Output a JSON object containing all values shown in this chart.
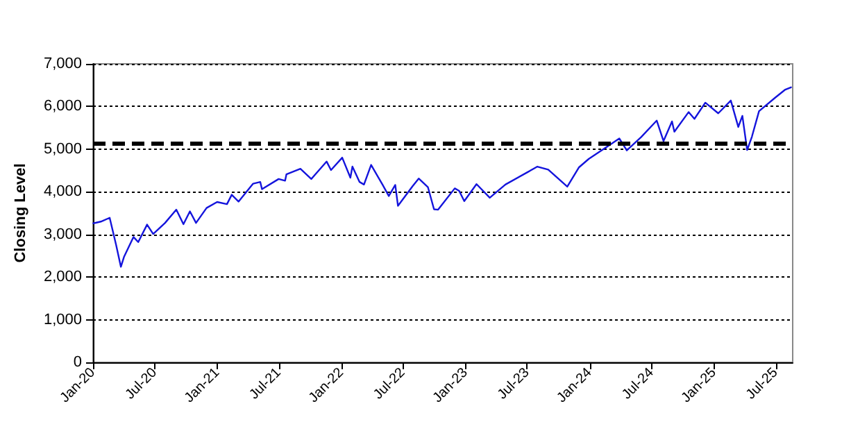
{
  "chart_data": {
    "type": "line",
    "ylabel": "Closing Level",
    "x": [
      "2020-01-02",
      "2020-01-24",
      "2020-02-19",
      "2020-03-09",
      "2020-03-23",
      "2020-04-01",
      "2020-04-29",
      "2020-05-13",
      "2020-06-08",
      "2020-06-26",
      "2020-07-31",
      "2020-09-02",
      "2020-09-23",
      "2020-10-12",
      "2020-10-30",
      "2020-11-30",
      "2020-12-31",
      "2021-01-29",
      "2021-02-12",
      "2021-03-04",
      "2021-04-16",
      "2021-05-07",
      "2021-05-12",
      "2021-06-30",
      "2021-07-19",
      "2021-07-23",
      "2021-09-02",
      "2021-10-04",
      "2021-11-18",
      "2021-12-01",
      "2022-01-03",
      "2022-01-27",
      "2022-02-02",
      "2022-02-23",
      "2022-03-08",
      "2022-03-29",
      "2022-05-02",
      "2022-05-20",
      "2022-06-08",
      "2022-06-16",
      "2022-07-29",
      "2022-08-16",
      "2022-09-12",
      "2022-09-30",
      "2022-10-12",
      "2022-11-30",
      "2022-12-13",
      "2022-12-28",
      "2023-02-02",
      "2023-03-13",
      "2023-04-28",
      "2023-06-30",
      "2023-07-31",
      "2023-09-01",
      "2023-10-27",
      "2023-11-30",
      "2023-12-29",
      "2024-02-29",
      "2024-03-28",
      "2024-04-19",
      "2024-05-31",
      "2024-07-16",
      "2024-08-05",
      "2024-08-30",
      "2024-09-06",
      "2024-10-18",
      "2024-11-04",
      "2024-12-06",
      "2025-01-13",
      "2025-02-19",
      "2025-03-13",
      "2025-03-25",
      "2025-04-08",
      "2025-04-22",
      "2025-05-13",
      "2025-06-30",
      "2025-07-28",
      "2025-08-15"
    ],
    "values": [
      3260,
      3300,
      3390,
      2750,
      2240,
      2470,
      2940,
      2820,
      3230,
      3010,
      3270,
      3580,
      3240,
      3540,
      3270,
      3620,
      3760,
      3710,
      3930,
      3770,
      4190,
      4230,
      4060,
      4300,
      4260,
      4410,
      4540,
      4300,
      4710,
      4510,
      4800,
      4330,
      4590,
      4230,
      4170,
      4630,
      4160,
      3900,
      4160,
      3670,
      4130,
      4310,
      4110,
      3590,
      3580,
      4080,
      4020,
      3780,
      4180,
      3860,
      4170,
      4450,
      4590,
      4520,
      4120,
      4570,
      4770,
      5100,
      5250,
      4970,
      5280,
      5670,
      5190,
      5650,
      5410,
      5870,
      5710,
      6090,
      5840,
      6140,
      5520,
      5780,
      4980,
      5290,
      5890,
      6210,
      6390,
      6450
    ],
    "color": "#1414dc",
    "xlim": [
      "2020-01-01",
      "2025-08-20"
    ],
    "xticks": [
      {
        "value": "2020-01-01",
        "label": "Jan-20"
      },
      {
        "value": "2020-07-01",
        "label": "Jul-20"
      },
      {
        "value": "2021-01-01",
        "label": "Jan-21"
      },
      {
        "value": "2021-07-01",
        "label": "Jul-21"
      },
      {
        "value": "2022-01-01",
        "label": "Jan-22"
      },
      {
        "value": "2022-07-01",
        "label": "Jul-22"
      },
      {
        "value": "2023-01-01",
        "label": "Jan-23"
      },
      {
        "value": "2023-07-01",
        "label": "Jul-23"
      },
      {
        "value": "2024-01-01",
        "label": "Jan-24"
      },
      {
        "value": "2024-07-01",
        "label": "Jul-24"
      },
      {
        "value": "2025-01-01",
        "label": "Jan-25"
      },
      {
        "value": "2025-07-01",
        "label": "Jul-25"
      }
    ],
    "ylim": [
      0,
      7000
    ],
    "yticks": [
      {
        "value": 0,
        "label": "0"
      },
      {
        "value": 1000,
        "label": "1,000"
      },
      {
        "value": 2000,
        "label": "2,000"
      },
      {
        "value": 3000,
        "label": "3,000"
      },
      {
        "value": 4000,
        "label": "4,000"
      },
      {
        "value": 5000,
        "label": "5,000"
      },
      {
        "value": 6000,
        "label": "6,000"
      },
      {
        "value": 7000,
        "label": "7,000"
      }
    ],
    "ref_lines": [
      {
        "axis": "y",
        "value": 5150,
        "color": "#000000",
        "line_style": "dashed"
      }
    ],
    "grid": "y",
    "marker": "none",
    "line_style": "solid"
  }
}
